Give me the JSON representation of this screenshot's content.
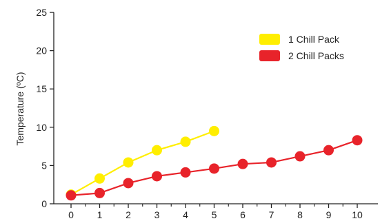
{
  "chart_data": {
    "type": "line",
    "title": "",
    "xlabel": "",
    "ylabel": "Temperature (ºC)",
    "xlim": [
      0,
      10
    ],
    "ylim": [
      0,
      25
    ],
    "x_ticks": [
      0,
      1,
      2,
      3,
      4,
      5,
      6,
      7,
      8,
      9,
      10
    ],
    "y_ticks": [
      0,
      5,
      10,
      15,
      20,
      25
    ],
    "grid": false,
    "legend_position": "top-right",
    "series": [
      {
        "name": "1 Chill Pack",
        "color": "#ffee00",
        "x": [
          0,
          1,
          2,
          3,
          4,
          5
        ],
        "y": [
          1.2,
          3.3,
          5.4,
          7.0,
          8.1,
          9.5
        ]
      },
      {
        "name": "2 Chill Packs",
        "color": "#e8232a",
        "x": [
          0,
          1,
          2,
          3,
          4,
          5,
          6,
          7,
          8,
          9,
          10
        ],
        "y": [
          1.1,
          1.4,
          2.7,
          3.6,
          4.1,
          4.6,
          5.2,
          5.4,
          6.2,
          7.0,
          8.3
        ]
      }
    ]
  }
}
